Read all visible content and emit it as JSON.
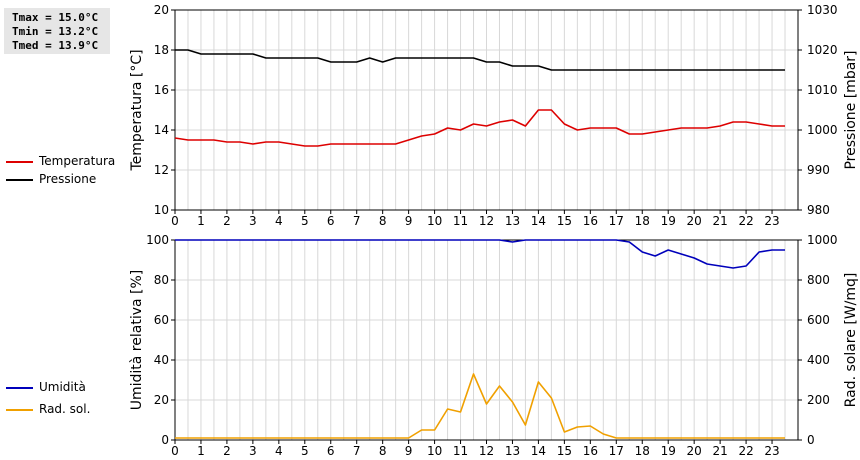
{
  "stats": {
    "tmax": "Tmax = 15.0°C",
    "tmin": "Tmin = 13.2°C",
    "tmed": "Tmed = 13.9°C"
  },
  "legend_top": [
    {
      "label": "Temperatura",
      "color": "#dd0000"
    },
    {
      "label": "Pressione",
      "color": "#000000"
    }
  ],
  "legend_bottom": [
    {
      "label": "Umidità",
      "color": "#0000bb"
    },
    {
      "label": "Rad. sol.",
      "color": "#f0a000"
    }
  ],
  "chart_data": [
    {
      "type": "line",
      "ylabel": "Temperatura [°C]",
      "y2label": "Pressione [mbar]",
      "xlim": [
        0,
        24
      ],
      "ylim": [
        10,
        20
      ],
      "y2lim": [
        980,
        1030
      ],
      "xticks": [
        "0",
        "1",
        "2",
        "3",
        "4",
        "5",
        "6",
        "7",
        "8",
        "9",
        "10",
        "11",
        "12",
        "13",
        "14",
        "15",
        "16",
        "17",
        "18",
        "19",
        "20",
        "21",
        "22",
        "23"
      ],
      "yticks": [
        "10",
        "12",
        "14",
        "16",
        "18",
        "20"
      ],
      "y2ticks": [
        "980",
        "990",
        "1000",
        "1010",
        "1020",
        "1030"
      ],
      "grid": true,
      "series": [
        {
          "name": "Temperatura",
          "axis": "left",
          "color": "#dd0000",
          "x": [
            0,
            0.5,
            1,
            1.5,
            2,
            2.5,
            3,
            3.5,
            4,
            4.5,
            5,
            5.5,
            6,
            6.5,
            7,
            7.5,
            8,
            8.5,
            9,
            9.5,
            10,
            10.5,
            11,
            11.5,
            12,
            12.5,
            13,
            13.5,
            14,
            14.5,
            15,
            15.5,
            16,
            16.5,
            17,
            17.5,
            18,
            18.5,
            19,
            19.5,
            20,
            20.5,
            21,
            21.5,
            22,
            22.5,
            23,
            23.5
          ],
          "y": [
            13.6,
            13.5,
            13.5,
            13.5,
            13.4,
            13.4,
            13.3,
            13.4,
            13.4,
            13.3,
            13.2,
            13.2,
            13.3,
            13.3,
            13.3,
            13.3,
            13.3,
            13.3,
            13.5,
            13.7,
            13.8,
            14.1,
            14.0,
            14.3,
            14.2,
            14.4,
            14.5,
            14.2,
            15.0,
            15.0,
            14.3,
            14.0,
            14.1,
            14.1,
            14.1,
            13.8,
            13.8,
            13.9,
            14.0,
            14.1,
            14.1,
            14.1,
            14.2,
            14.4,
            14.4,
            14.3,
            14.2,
            14.2
          ]
        },
        {
          "name": "Pressione",
          "axis": "right",
          "color": "#000000",
          "x": [
            0,
            0.5,
            1,
            1.5,
            2,
            2.5,
            3,
            3.5,
            4,
            4.5,
            5,
            5.5,
            6,
            6.5,
            7,
            7.5,
            8,
            8.5,
            9,
            9.5,
            10,
            10.5,
            11,
            11.5,
            12,
            12.5,
            13,
            13.5,
            14,
            14.5,
            15,
            15.5,
            16,
            16.5,
            17,
            17.5,
            18,
            18.5,
            19,
            19.5,
            20,
            20.5,
            21,
            21.5,
            22,
            22.5,
            23,
            23.5
          ],
          "y": [
            1020,
            1020,
            1019,
            1019,
            1019,
            1019,
            1019,
            1018,
            1018,
            1018,
            1018,
            1018,
            1017,
            1017,
            1017,
            1018,
            1017,
            1018,
            1018,
            1018,
            1018,
            1018,
            1018,
            1018,
            1017,
            1017,
            1016,
            1016,
            1016,
            1015,
            1015,
            1015,
            1015,
            1015,
            1015,
            1015,
            1015,
            1015,
            1015,
            1015,
            1015,
            1015,
            1015,
            1015,
            1015,
            1015,
            1015,
            1015
          ]
        }
      ]
    },
    {
      "type": "line",
      "ylabel": "Umidità relativa [%]",
      "y2label": "Rad. solare [W/mq]",
      "xlim": [
        0,
        24
      ],
      "ylim": [
        0,
        100
      ],
      "y2lim": [
        0,
        1000
      ],
      "xticks": [
        "0",
        "1",
        "2",
        "3",
        "4",
        "5",
        "6",
        "7",
        "8",
        "9",
        "10",
        "11",
        "12",
        "13",
        "14",
        "15",
        "16",
        "17",
        "18",
        "19",
        "20",
        "21",
        "22",
        "23"
      ],
      "yticks": [
        "0",
        "20",
        "40",
        "60",
        "80",
        "100"
      ],
      "y2ticks": [
        "0",
        "200",
        "400",
        "600",
        "800",
        "1000"
      ],
      "grid": true,
      "series": [
        {
          "name": "Umidità",
          "axis": "left",
          "color": "#0000bb",
          "x": [
            0,
            0.5,
            1,
            1.5,
            2,
            2.5,
            3,
            3.5,
            4,
            4.5,
            5,
            5.5,
            6,
            6.5,
            7,
            7.5,
            8,
            8.5,
            9,
            9.5,
            10,
            10.5,
            11,
            11.5,
            12,
            12.5,
            13,
            13.5,
            14,
            14.5,
            15,
            15.5,
            16,
            16.5,
            17,
            17.5,
            18,
            18.5,
            19,
            19.5,
            20,
            20.5,
            21,
            21.5,
            22,
            22.5,
            23,
            23.5
          ],
          "y": [
            100,
            100,
            100,
            100,
            100,
            100,
            100,
            100,
            100,
            100,
            100,
            100,
            100,
            100,
            100,
            100,
            100,
            100,
            100,
            100,
            100,
            100,
            100,
            100,
            100,
            100,
            99,
            100,
            100,
            100,
            100,
            100,
            100,
            100,
            100,
            99,
            94,
            92,
            95,
            93,
            91,
            88,
            87,
            86,
            87,
            94,
            95,
            95
          ]
        },
        {
          "name": "Rad. sol.",
          "axis": "right",
          "color": "#f0a000",
          "x": [
            0,
            0.5,
            1,
            1.5,
            2,
            2.5,
            3,
            3.5,
            4,
            4.5,
            5,
            5.5,
            6,
            6.5,
            7,
            7.5,
            8,
            8.5,
            9,
            9.5,
            10,
            10.5,
            11,
            11.5,
            12,
            12.5,
            13,
            13.5,
            14,
            14.5,
            15,
            15.5,
            16,
            16.5,
            17,
            17.5,
            18,
            18.5,
            19,
            19.5,
            20,
            20.5,
            21,
            21.5,
            22,
            22.5,
            23,
            23.5
          ],
          "y": [
            10,
            10,
            10,
            10,
            10,
            10,
            10,
            10,
            10,
            10,
            10,
            10,
            10,
            10,
            10,
            10,
            10,
            10,
            10,
            50,
            50,
            155,
            140,
            330,
            180,
            270,
            190,
            75,
            290,
            210,
            40,
            65,
            70,
            30,
            10,
            10,
            10,
            10,
            10,
            10,
            10,
            10,
            10,
            10,
            10,
            10,
            10,
            10
          ]
        }
      ]
    }
  ]
}
